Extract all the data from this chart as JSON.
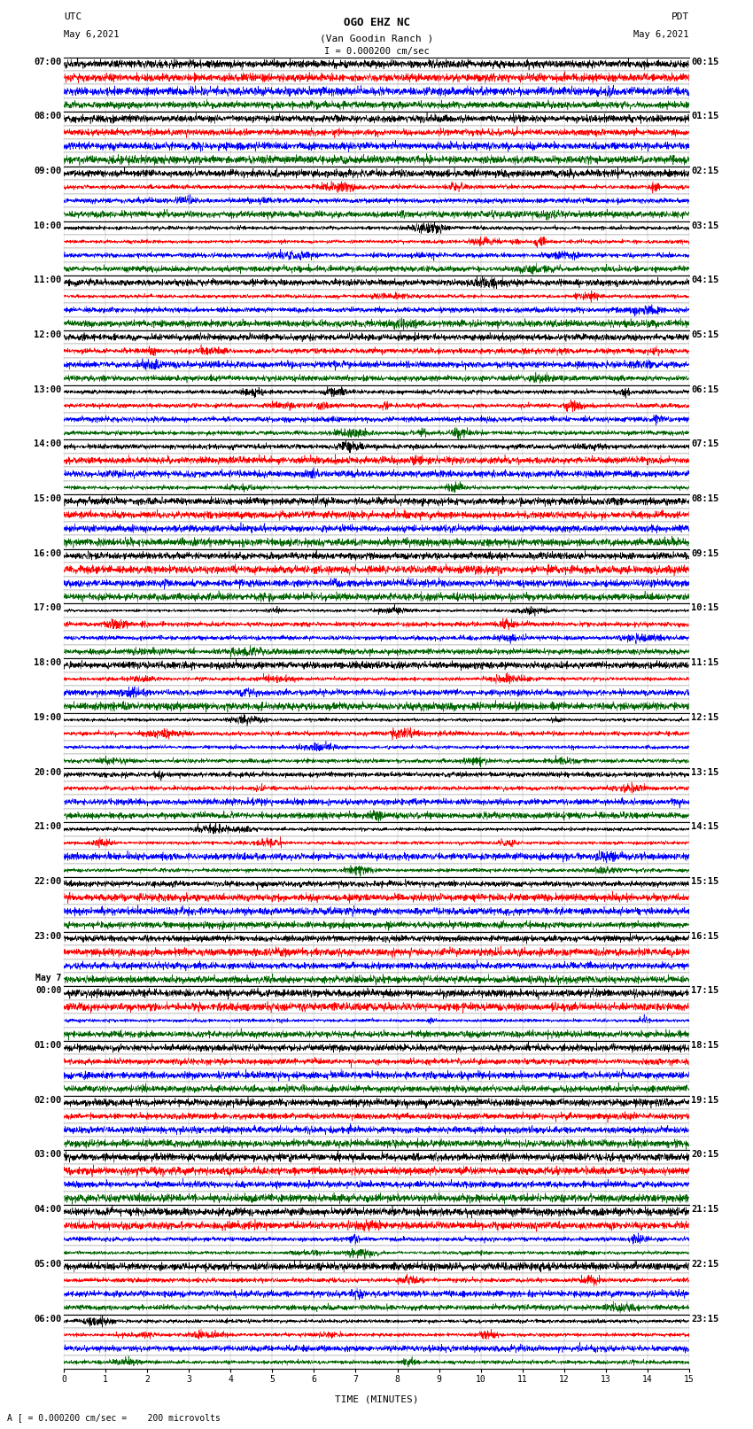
{
  "title_line1": "OGO EHZ NC",
  "title_line2": "(Van Goodin Ranch )",
  "scale_label": "I = 0.000200 cm/sec",
  "left_header": "UTC",
  "left_date": "May 6,2021",
  "right_header": "PDT",
  "right_date": "May 6,2021",
  "bottom_label": "TIME (MINUTES)",
  "bottom_note": "A [ = 0.000200 cm/sec =    200 microvolts",
  "figsize": [
    8.5,
    16.13
  ],
  "dpi": 100,
  "bg_color": "#ffffff",
  "grid_color": "#888888",
  "border_color": "#000000",
  "num_hour_blocks": 24,
  "traces_per_block": 4,
  "minutes_per_row": 15,
  "colors_cycle": [
    "#000000",
    "#ff0000",
    "#0000ff",
    "#006400"
  ],
  "left_time_labels": [
    "07:00",
    "08:00",
    "09:00",
    "10:00",
    "11:00",
    "12:00",
    "13:00",
    "14:00",
    "15:00",
    "16:00",
    "17:00",
    "18:00",
    "19:00",
    "20:00",
    "21:00",
    "22:00",
    "23:00",
    "May 7\n00:00",
    "01:00",
    "02:00",
    "03:00",
    "04:00",
    "05:00",
    "06:00"
  ],
  "right_time_labels": [
    "00:15",
    "01:15",
    "02:15",
    "03:15",
    "04:15",
    "05:15",
    "06:15",
    "07:15",
    "08:15",
    "09:15",
    "10:15",
    "11:15",
    "12:15",
    "13:15",
    "14:15",
    "15:15",
    "16:15",
    "17:15",
    "18:15",
    "19:15",
    "20:15",
    "21:15",
    "22:15",
    "23:15"
  ],
  "x_ticks": [
    0,
    1,
    2,
    3,
    4,
    5,
    6,
    7,
    8,
    9,
    10,
    11,
    12,
    13,
    14,
    15
  ],
  "seed": 42,
  "lw": 0.4
}
